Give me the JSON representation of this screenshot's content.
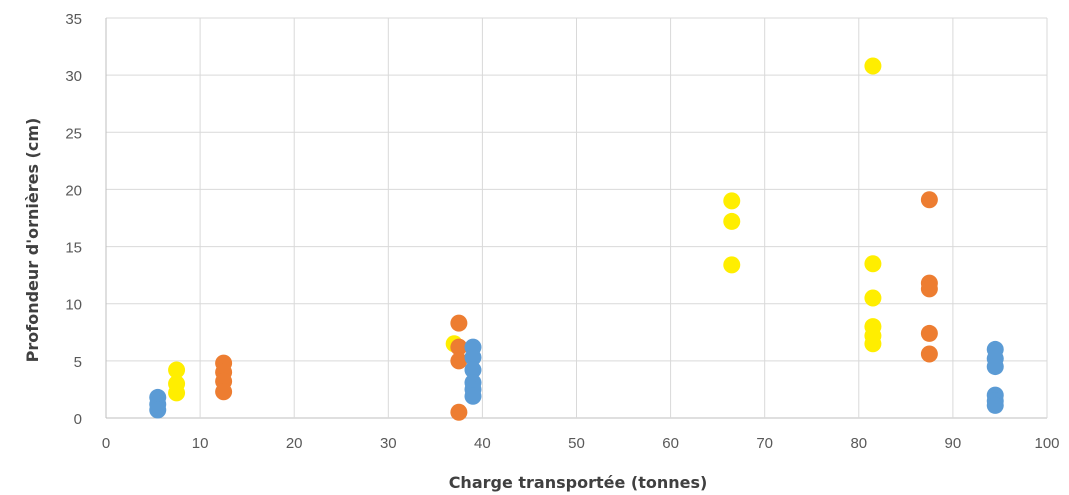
{
  "chart_data": {
    "type": "scatter",
    "title": "",
    "xlabel": "Charge transportée (tonnes)",
    "ylabel": "Profondeur d'ornières (cm)",
    "xlim": [
      0,
      100
    ],
    "ylim": [
      0,
      35
    ],
    "x_ticks": [
      0,
      10,
      20,
      30,
      40,
      50,
      60,
      70,
      80,
      90,
      100
    ],
    "y_ticks": [
      0,
      5,
      10,
      15,
      20,
      25,
      30,
      35
    ],
    "grid": true,
    "legend": "none",
    "series": [
      {
        "color": "#ffee00",
        "points": [
          [
            7.5,
            4.2
          ],
          [
            7.5,
            3.0
          ],
          [
            7.5,
            2.2
          ],
          [
            37.0,
            6.5
          ],
          [
            66.5,
            19.0
          ],
          [
            66.5,
            17.2
          ],
          [
            66.5,
            13.4
          ],
          [
            81.5,
            30.8
          ],
          [
            81.5,
            13.5
          ],
          [
            81.5,
            10.5
          ],
          [
            81.5,
            8.0
          ],
          [
            81.5,
            7.2
          ],
          [
            81.5,
            6.5
          ]
        ]
      },
      {
        "color": "#ed7d31",
        "points": [
          [
            12.5,
            4.8
          ],
          [
            12.5,
            4.0
          ],
          [
            12.5,
            3.2
          ],
          [
            12.5,
            2.3
          ],
          [
            37.5,
            8.3
          ],
          [
            37.5,
            6.2
          ],
          [
            37.5,
            5.0
          ],
          [
            37.5,
            0.5
          ],
          [
            87.5,
            19.1
          ],
          [
            87.5,
            11.8
          ],
          [
            87.5,
            11.3
          ],
          [
            87.5,
            7.4
          ],
          [
            87.5,
            5.6
          ]
        ]
      },
      {
        "color": "#5b9bd5",
        "points": [
          [
            5.5,
            1.8
          ],
          [
            5.5,
            1.2
          ],
          [
            5.5,
            0.7
          ],
          [
            39.0,
            6.2
          ],
          [
            39.0,
            5.3
          ],
          [
            39.0,
            4.2
          ],
          [
            39.0,
            3.1
          ],
          [
            39.0,
            2.5
          ],
          [
            39.0,
            1.9
          ],
          [
            94.5,
            6.0
          ],
          [
            94.5,
            5.2
          ],
          [
            94.5,
            4.5
          ],
          [
            94.5,
            2.0
          ],
          [
            94.5,
            1.5
          ],
          [
            94.5,
            1.1
          ]
        ]
      }
    ]
  }
}
